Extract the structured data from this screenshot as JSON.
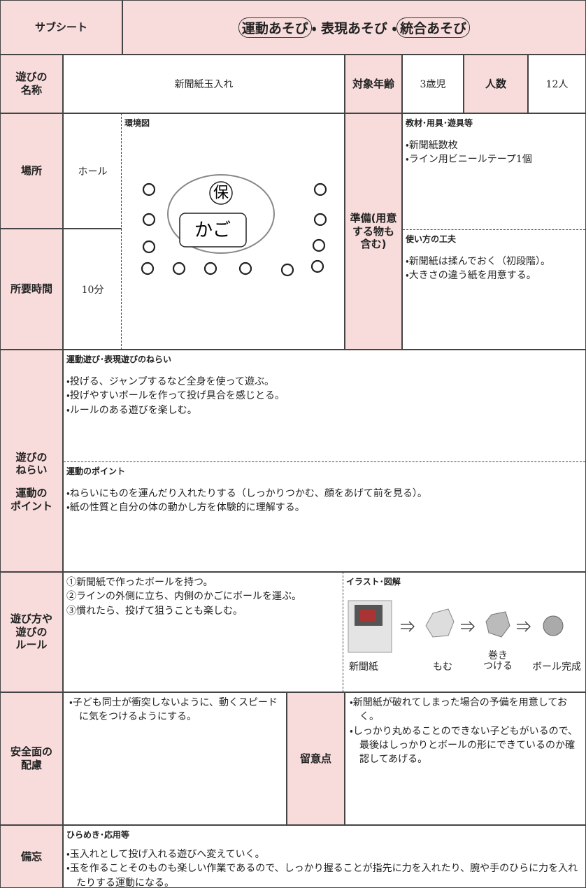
{
  "header": {
    "label": "サブシート",
    "title": {
      "circled_first": "運動あそび",
      "middle": "・ 表現あそび ・",
      "circled_last": "統合あそび"
    }
  },
  "name": {
    "label": "遊びの\n名称",
    "value": "新聞紙玉入れ"
  },
  "age": {
    "label": "対象年齢",
    "value": "3歳児"
  },
  "count": {
    "label": "人数",
    "value": "12人"
  },
  "place": {
    "label": "場所",
    "value": "ホール"
  },
  "duration": {
    "label": "所要時間",
    "value": "10分"
  },
  "environment": {
    "label": "環境図",
    "teacher": "保",
    "basket": "かご"
  },
  "preparation": {
    "label": "準備(用意\nする物も\n含む)",
    "materials": {
      "title": "教材･用具･遊具等",
      "items": [
        "・新聞紙数枚",
        "・ライン用ビニールテープ1個"
      ]
    },
    "ideas": {
      "title": "使い方の工夫",
      "items": [
        "・新聞紙は揉んでおく（初段階）。",
        "・大きさの違う紙を用意する。"
      ]
    }
  },
  "aims": {
    "label_1": "遊びの\nねらい",
    "label_2": "運動の\nポイント",
    "aims_title": "運動遊び･表現遊びのねらい",
    "aims": [
      "・投げる、ジャンプするなど全身を使って遊ぶ。",
      "・投げやすいボールを作って投げ具合を感じとる。",
      "・ルールのある遊びを楽しむ。"
    ],
    "points_title": "運動のポイント",
    "points": [
      "・ねらいにものを運んだり入れたりする（しっかりつかむ、顔をあげて前を見る）。",
      "・紙の性質と自分の体の動かし方を体験的に理解する。"
    ]
  },
  "rules": {
    "label": "遊び方や\n遊びの\nルール",
    "steps": [
      "①新聞紙で作ったボールを持つ。",
      "②ラインの外側に立ち、内側のかごにボールを運ぶ。",
      "③慣れたら、投げて狙うことも楽しむ。"
    ],
    "illustration_title": "イラスト･図解",
    "captions": [
      "新聞紙",
      "もむ",
      "巻き\nつける",
      "ボール完成"
    ]
  },
  "safety": {
    "label": "安全面の\n配慮",
    "text": [
      "・子ども同士が衝突しないように、動くスピードに気をつけるようにする。"
    ],
    "notes_label": "留意点",
    "notes": [
      "・新聞紙が破れてしまった場合の予備を用意しておく。",
      "・しっかり丸めることのできない子どもがいるので、最後はしっかりとボールの形にできているのか確認してあげる。"
    ]
  },
  "memo": {
    "label": "備忘",
    "title": "ひらめき･応用等",
    "items": [
      "・玉入れとして投げ入れる遊びへ変えていく。",
      "・玉を作ることそのものも楽しい作業であるので、しっかり握ることが指先に力を入れたり、腕や手のひらに力を入れたりする運動になる。"
    ]
  }
}
